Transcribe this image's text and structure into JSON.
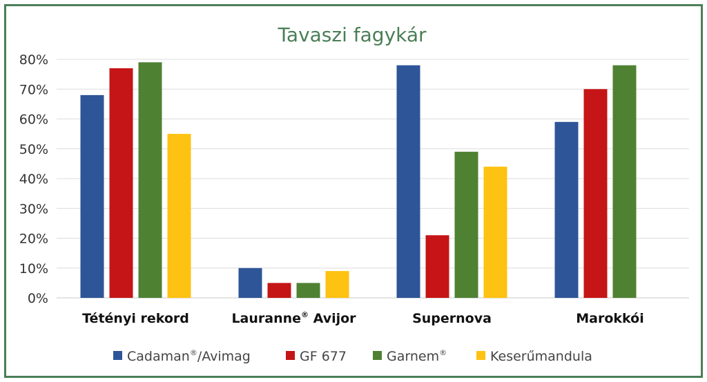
{
  "chart_data": {
    "type": "bar",
    "title": "Tavaszi fagykár",
    "categories": [
      {
        "label": "Tétényi rekord",
        "sup": "",
        "suffix": ""
      },
      {
        "label": "Lauranne",
        "sup": "®",
        "suffix": " Avijor"
      },
      {
        "label": "Supernova",
        "sup": "",
        "suffix": ""
      },
      {
        "label": "Marokkói",
        "sup": "",
        "suffix": ""
      }
    ],
    "series": [
      {
        "name": "Cadaman",
        "sup": "®",
        "suffix": "/Avimag",
        "color": "#2e5597",
        "values": [
          68,
          10,
          78,
          59
        ]
      },
      {
        "name": "GF 677",
        "sup": "",
        "suffix": "",
        "color": "#c51516",
        "values": [
          77,
          5,
          21,
          70
        ]
      },
      {
        "name": "Garnem",
        "sup": "®",
        "suffix": "",
        "color": "#4f8133",
        "values": [
          79,
          5,
          49,
          78
        ]
      },
      {
        "name": "Keserűmandula",
        "sup": "",
        "suffix": "",
        "color": "#fec212",
        "values": [
          55,
          9,
          44,
          null
        ]
      }
    ],
    "yticks": [
      "0%",
      "10%",
      "20%",
      "30%",
      "40%",
      "50%",
      "60%",
      "70%",
      "80%"
    ],
    "ylim": [
      0,
      80
    ],
    "grid": true,
    "legend_position": "bottom"
  }
}
